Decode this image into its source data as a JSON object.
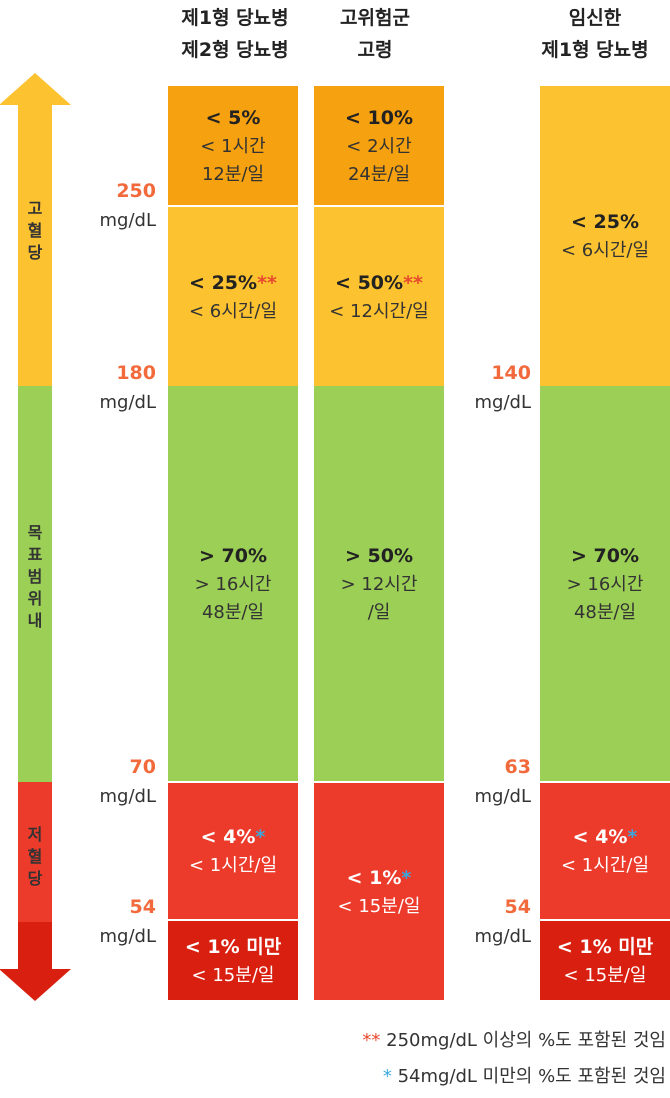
{
  "headers": {
    "col1": [
      "제1형 당뇨병",
      "제2형 당뇨병"
    ],
    "col2": [
      "고위험군",
      "고령"
    ],
    "col3": [
      "임신한",
      "제1형 당뇨병"
    ]
  },
  "range_labels": {
    "high": [
      "고",
      "혈",
      "당"
    ],
    "target": [
      "목",
      "표",
      "범",
      "위",
      "내"
    ],
    "low": [
      "저",
      "혈",
      "당"
    ]
  },
  "unit": "mg/dL",
  "thresholds_left": [
    "250",
    "180",
    "70",
    "54"
  ],
  "thresholds_right": [
    "140",
    "63",
    "54"
  ],
  "cells": {
    "c1": [
      {
        "pct": "< 5%",
        "star": "",
        "t1": "< 1시간",
        "t2": "12분/일"
      },
      {
        "pct": "< 25%",
        "star": "**",
        "t1": "< 6시간/일",
        "t2": ""
      },
      {
        "pct": "> 70%",
        "star": "",
        "t1": "> 16시간",
        "t2": "48분/일"
      },
      {
        "pct": "< 4%",
        "star": "*",
        "t1": "< 1시간/일",
        "t2": ""
      },
      {
        "pct": "< 1% 미만",
        "star": "",
        "t1": "< 15분/일",
        "t2": ""
      }
    ],
    "c2": [
      {
        "pct": "< 10%",
        "star": "",
        "t1": "< 2시간",
        "t2": "24분/일"
      },
      {
        "pct": "< 50%",
        "star": "**",
        "t1": "< 12시간/일",
        "t2": ""
      },
      {
        "pct": "> 50%",
        "star": "",
        "t1": "> 12시간",
        "t2": "/일"
      },
      {
        "pct": "< 1%",
        "star": "*",
        "t1": "< 15분/일",
        "t2": ""
      }
    ],
    "c3": [
      {
        "pct": "< 25%",
        "star": "",
        "t1": "< 6시간/일",
        "t2": ""
      },
      {
        "pct": "> 70%",
        "star": "",
        "t1": "> 16시간",
        "t2": "48분/일"
      },
      {
        "pct": "< 4%",
        "star": "*",
        "t1": "< 1시간/일",
        "t2": ""
      },
      {
        "pct": "< 1% 미만",
        "star": "",
        "t1": "< 15분/일",
        "t2": ""
      }
    ]
  },
  "footnotes": {
    "double_star_mark": "**",
    "double_star_text": "250mg/dL 이상의 %도 포함된 것임",
    "single_star_mark": "*",
    "single_star_text": "54mg/dL 미만의 %도 포함된 것임"
  },
  "colors": {
    "very_high": "#f6a10f",
    "high": "#fcc22f",
    "target": "#9ccf55",
    "low": "#ec3a2b",
    "very_low": "#d91f0f",
    "threshold_text": "#f26a3c",
    "star_orange": "#e8482e",
    "star_blue": "#3aa8dd"
  },
  "chart_data": {
    "type": "table",
    "title": "",
    "series": [
      {
        "name": "제1형 당뇨병 / 제2형 당뇨병",
        "thresholds_mg_dl": [
          250,
          180,
          70,
          54
        ],
        "values": [
          "< 5%",
          "< 25%",
          "> 70%",
          "< 4%",
          "< 1% 미만"
        ]
      },
      {
        "name": "고위험군 / 고령",
        "thresholds_mg_dl": [
          250,
          180,
          70,
          54
        ],
        "values": [
          "< 10%",
          "< 50%",
          "> 50%",
          "< 1%"
        ]
      },
      {
        "name": "임신한 제1형 당뇨병",
        "thresholds_mg_dl": [
          140,
          63,
          54
        ],
        "values": [
          "< 25%",
          "> 70%",
          "< 4%",
          "< 1% 미만"
        ]
      }
    ]
  }
}
